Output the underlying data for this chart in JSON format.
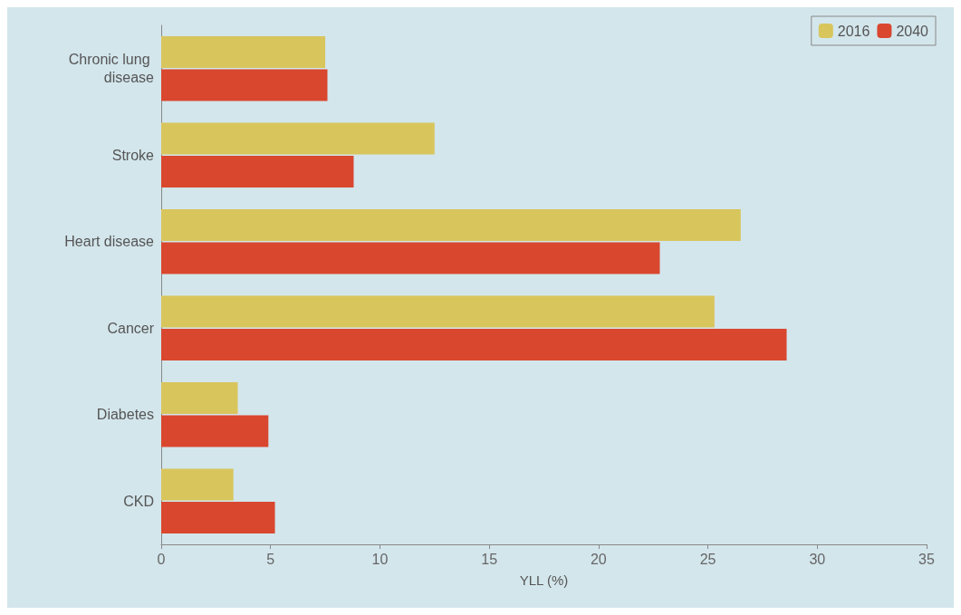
{
  "chart_data": {
    "type": "bar",
    "orientation": "horizontal",
    "xlabel": "YLL (%)",
    "categories": [
      "Chronic lung disease",
      "Stroke",
      "Heart disease",
      "Cancer",
      "Diabetes",
      "CKD"
    ],
    "series": [
      {
        "name": "2016",
        "color": "#d8c55c",
        "values": [
          7.5,
          12.5,
          26.5,
          25.3,
          3.5,
          3.3
        ]
      },
      {
        "name": "2040",
        "color": "#d9472e",
        "values": [
          7.6,
          8.8,
          22.8,
          28.6,
          4.9,
          5.2
        ]
      }
    ],
    "xlim": [
      0,
      35
    ],
    "xticks": [
      0,
      5,
      10,
      15,
      20,
      25,
      30,
      35
    ],
    "legend": "top right",
    "grid": false
  }
}
